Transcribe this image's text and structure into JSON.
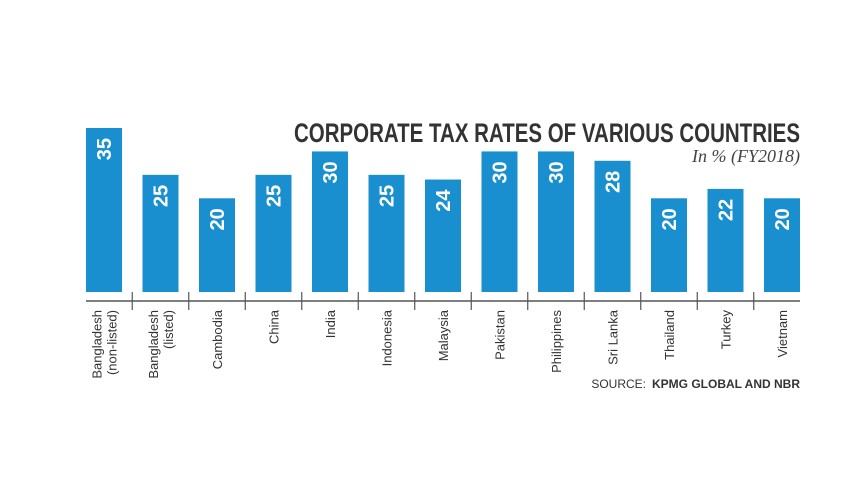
{
  "chart_data": {
    "type": "bar",
    "title": "CORPORATE TAX RATES OF VARIOUS COUNTRIES",
    "subtitle": "In % (FY2018)",
    "categories": [
      [
        "Bangladesh",
        "(non-listed)"
      ],
      [
        "Bangladesh",
        "(listed)"
      ],
      [
        "Cambodia"
      ],
      [
        "China"
      ],
      [
        "India"
      ],
      [
        "Indonesia"
      ],
      [
        "Malaysia"
      ],
      [
        "Pakistan"
      ],
      [
        "Philippines"
      ],
      [
        "Sri Lanka"
      ],
      [
        "Thailand"
      ],
      [
        "Turkey"
      ],
      [
        "Vietnam"
      ]
    ],
    "values": [
      35,
      25,
      20,
      25,
      30,
      25,
      24,
      30,
      30,
      28,
      20,
      22,
      20
    ],
    "ylim": [
      0,
      35
    ],
    "grid": false,
    "bar_color": "#1a8fd0",
    "value_labels": "inside-top-rotated",
    "source_label": "SOURCE:",
    "source_text": "KPMG GLOBAL AND NBR"
  }
}
